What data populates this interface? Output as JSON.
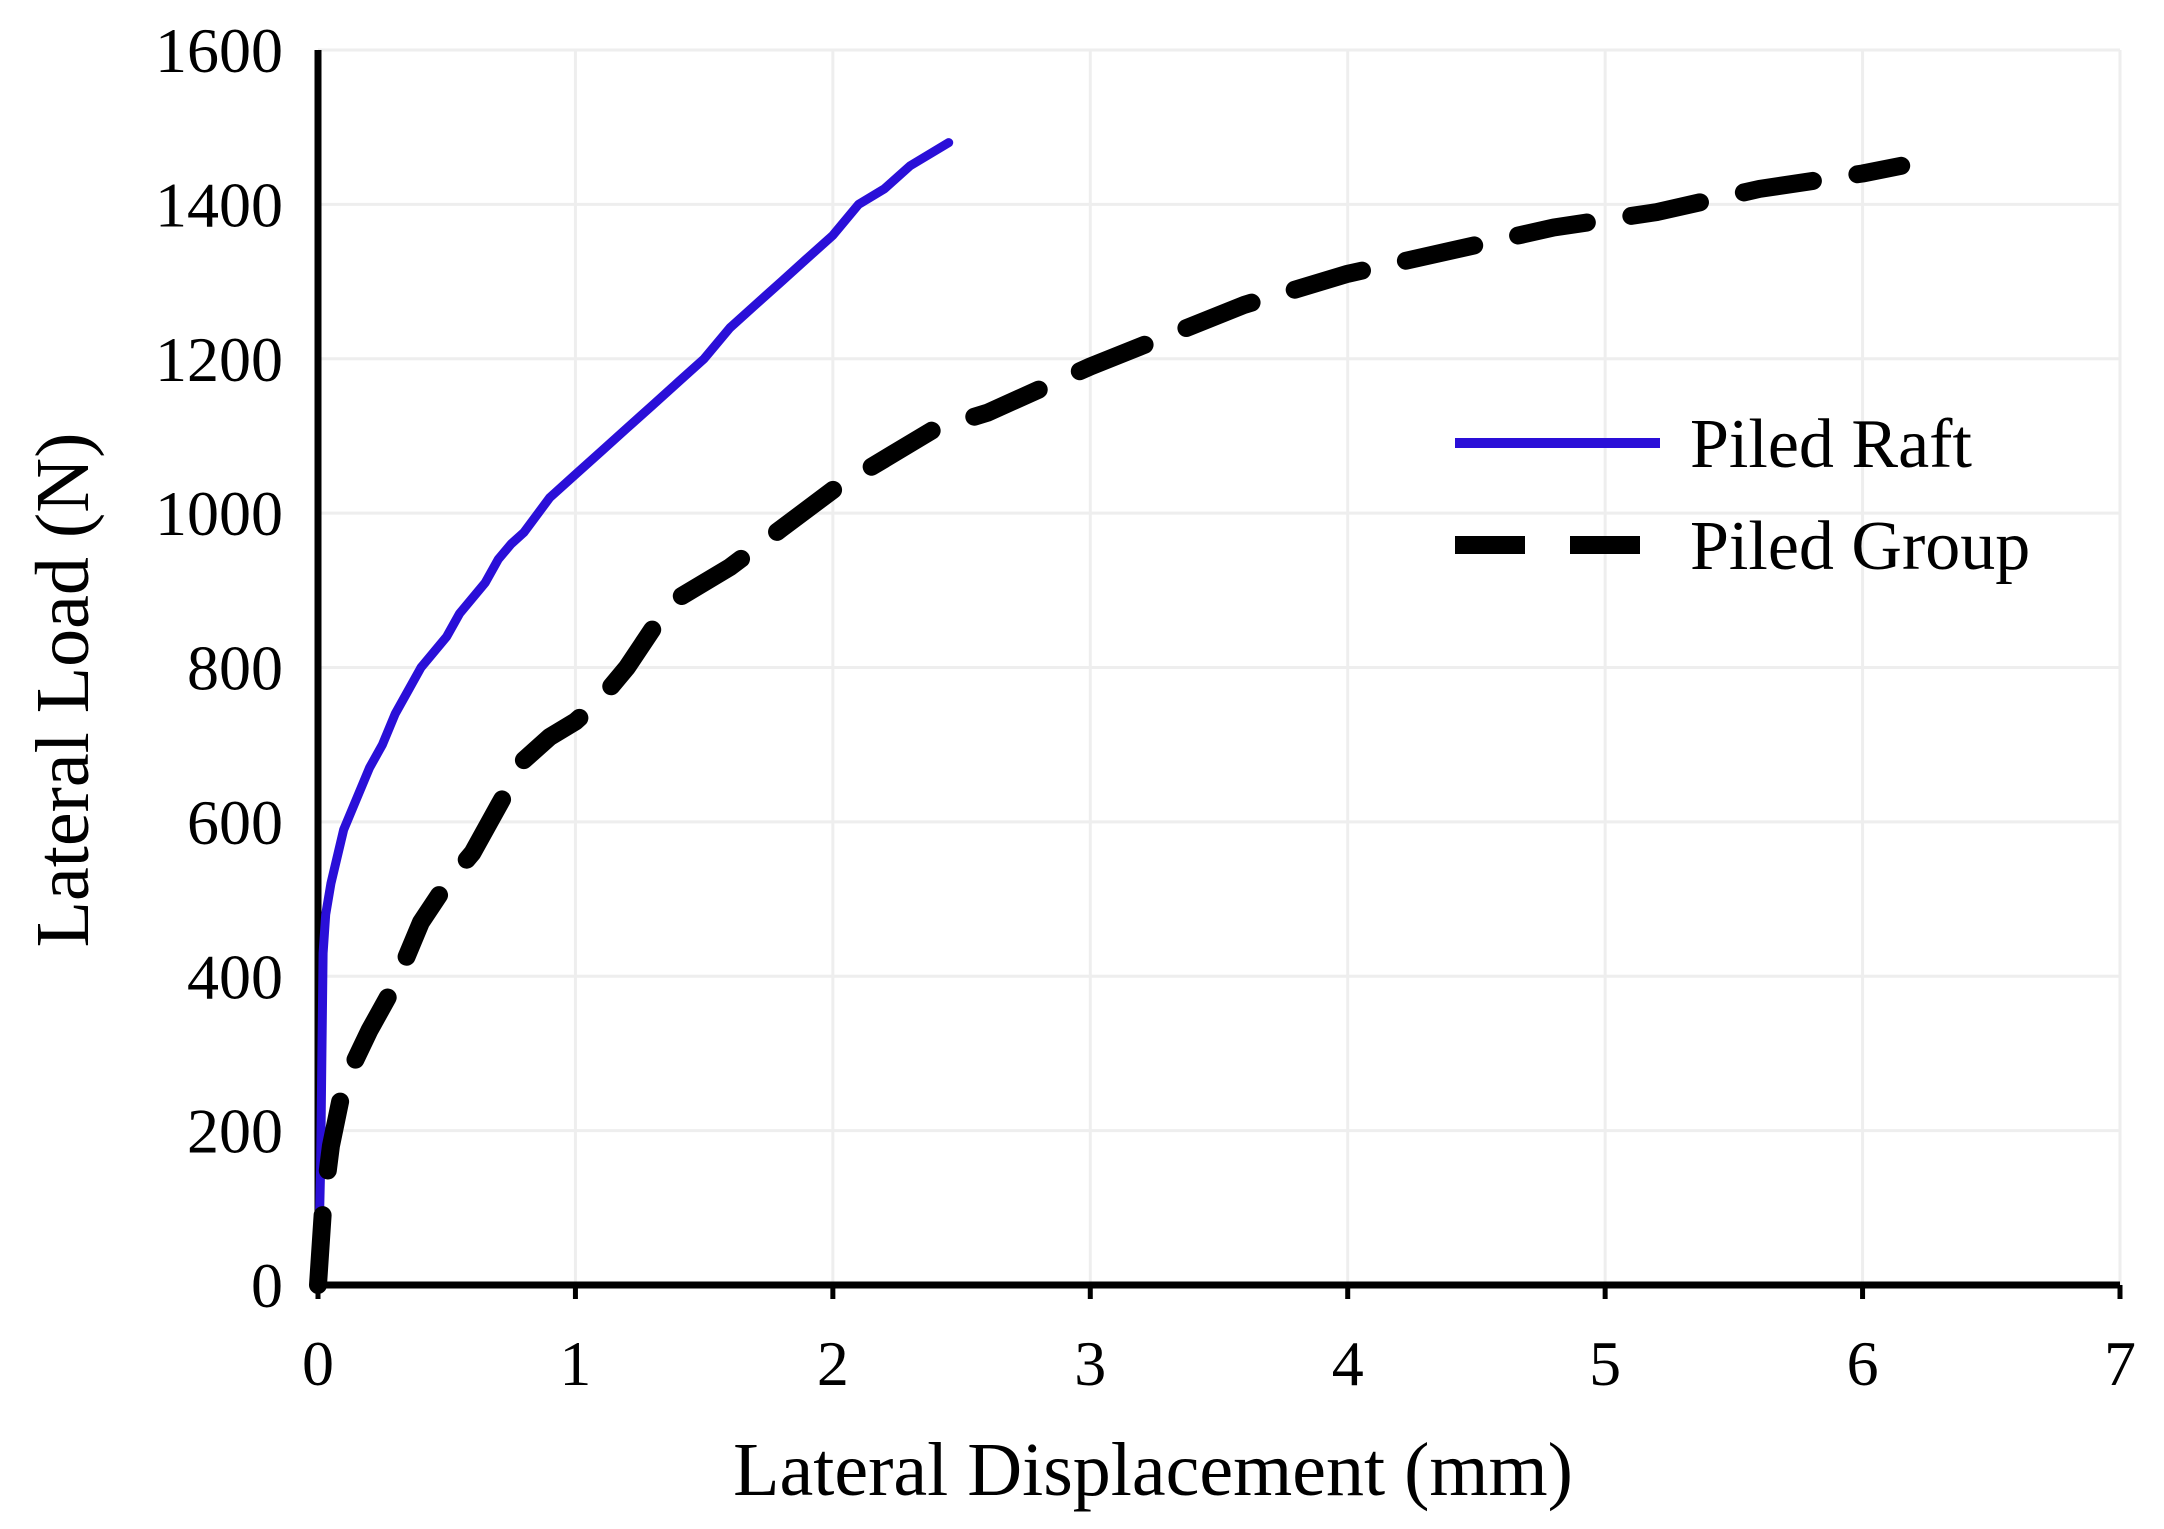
{
  "chart_data": {
    "type": "line",
    "title": "",
    "xlabel": "Lateral Displacement (mm)",
    "ylabel": "Lateral Load (N)",
    "xlim": [
      0,
      7
    ],
    "ylim": [
      0,
      1600
    ],
    "x_ticks": [
      0,
      1,
      2,
      3,
      4,
      5,
      6,
      7
    ],
    "y_ticks": [
      0,
      200,
      400,
      600,
      800,
      1000,
      1200,
      1400,
      1600
    ],
    "grid": true,
    "legend_position": "right",
    "series": [
      {
        "name": "Piled Raft",
        "color": "#2a0fd8",
        "style": "solid",
        "x": [
          0,
          0.01,
          0.015,
          0.02,
          0.03,
          0.05,
          0.1,
          0.15,
          0.2,
          0.25,
          0.3,
          0.35,
          0.4,
          0.45,
          0.5,
          0.55,
          0.6,
          0.65,
          0.7,
          0.75,
          0.8,
          0.9,
          1.0,
          1.1,
          1.2,
          1.3,
          1.4,
          1.5,
          1.6,
          1.7,
          1.8,
          1.9,
          2.0,
          2.1,
          2.2,
          2.3,
          2.45
        ],
        "y": [
          0,
          150,
          300,
          430,
          480,
          520,
          590,
          630,
          670,
          700,
          740,
          770,
          800,
          820,
          840,
          870,
          890,
          910,
          940,
          960,
          975,
          1020,
          1050,
          1080,
          1110,
          1140,
          1170,
          1200,
          1240,
          1270,
          1300,
          1330,
          1360,
          1400,
          1420,
          1450,
          1480
        ]
      },
      {
        "name": "Piled Group",
        "color": "#000000",
        "style": "dashed",
        "x": [
          0,
          0.02,
          0.05,
          0.1,
          0.2,
          0.3,
          0.4,
          0.5,
          0.6,
          0.7,
          0.8,
          0.9,
          1.0,
          1.1,
          1.2,
          1.3,
          1.4,
          1.6,
          1.8,
          2.0,
          2.2,
          2.4,
          2.6,
          2.8,
          3.0,
          3.3,
          3.6,
          4.0,
          4.4,
          4.8,
          5.2,
          5.6,
          6.0,
          6.15
        ],
        "y": [
          0,
          100,
          180,
          260,
          330,
          390,
          470,
          520,
          560,
          620,
          680,
          710,
          730,
          760,
          800,
          850,
          890,
          930,
          980,
          1030,
          1070,
          1110,
          1130,
          1160,
          1190,
          1230,
          1270,
          1310,
          1340,
          1370,
          1390,
          1420,
          1440,
          1450
        ]
      }
    ]
  }
}
